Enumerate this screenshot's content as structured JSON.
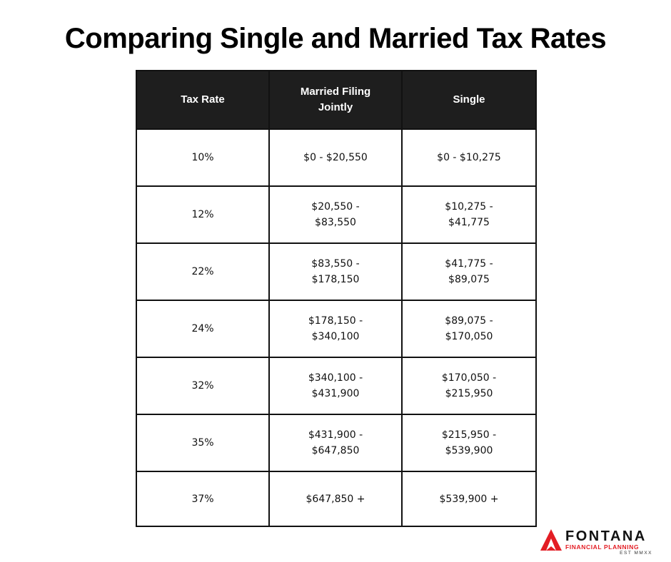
{
  "title": "Comparing Single and Married Tax Rates",
  "table": {
    "headers": [
      "Tax Rate",
      "Married Filing Jointly",
      "Single"
    ],
    "rows": [
      {
        "rate": "10%",
        "married": "$0 - $20,550",
        "single": "$0 - $10,275"
      },
      {
        "rate": "12%",
        "married": "$20,550 - $83,550",
        "single": "$10,275 - $41,775"
      },
      {
        "rate": "22%",
        "married": "$83,550 - $178,150",
        "single": "$41,775 - $89,075"
      },
      {
        "rate": "24%",
        "married": "$178,150 - $340,100",
        "single": "$89,075 - $170,050"
      },
      {
        "rate": "32%",
        "married": "$340,100 - $431,900",
        "single": "$170,050 - $215,950"
      },
      {
        "rate": "35%",
        "married": "$431,900 - $647,850",
        "single": "$215,950 - $539,900"
      },
      {
        "rate": "37%",
        "married": "$647,850 +",
        "single": "$539,900 +"
      }
    ]
  },
  "logo": {
    "name": "FONTANA",
    "tagline": "FINANCIAL PLANNING",
    "est": "EST MMXX",
    "accent_color": "#e31d24"
  },
  "colors": {
    "header_bg": "#1e1e1e",
    "header_text": "#ffffff",
    "border": "#111111"
  }
}
